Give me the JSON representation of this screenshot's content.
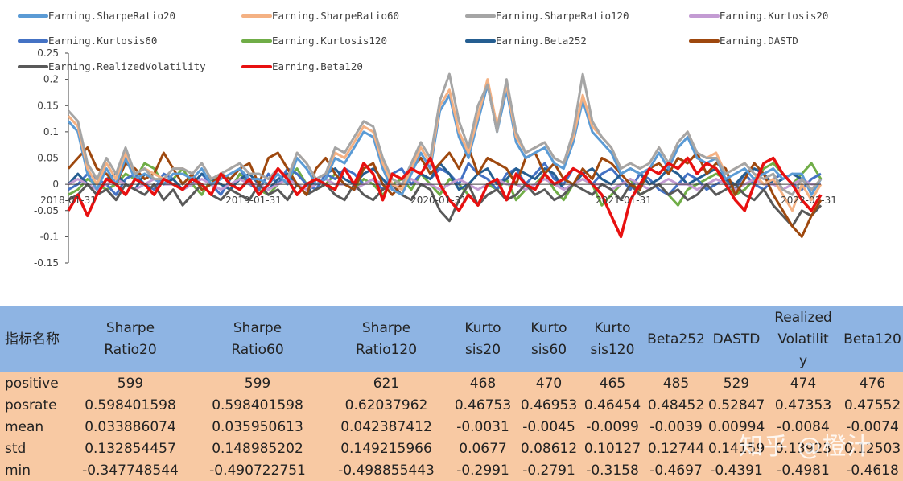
{
  "chart_data": {
    "type": "line",
    "x_tick_labels": [
      "2018-01-31",
      "2019-01-31",
      "2020-01-31",
      "2021-01-31",
      "2022-01-31"
    ],
    "yticks": [
      "0.25",
      "0.2",
      "0.15",
      "0.1",
      "0.05",
      "0",
      "-0.05",
      "-0.1",
      "-0.15"
    ],
    "ylim": [
      -0.15,
      0.25
    ],
    "grid": false,
    "legend_position": "top",
    "series": [
      {
        "name": "Earning.SharpeRatio20",
        "color": "#5b9bd5",
        "values": [
          0.12,
          0.1,
          0.02,
          -0.01,
          0.03,
          0.0,
          0.05,
          0.01,
          0.02,
          0.01,
          0.0,
          0.02,
          0.02,
          0.01,
          0.03,
          0.0,
          0.01,
          0.02,
          0.03,
          0.01,
          0.01,
          0.0,
          0.02,
          0.0,
          0.05,
          0.03,
          0.0,
          0.01,
          0.05,
          0.04,
          0.07,
          0.1,
          0.09,
          0.03,
          -0.01,
          -0.02,
          0.02,
          0.06,
          0.03,
          0.14,
          0.17,
          0.09,
          0.05,
          0.12,
          0.19,
          0.1,
          0.18,
          0.08,
          0.05,
          0.06,
          0.07,
          0.04,
          0.03,
          0.08,
          0.16,
          0.1,
          0.08,
          0.06,
          0.02,
          0.03,
          0.02,
          0.03,
          0.06,
          0.03,
          0.07,
          0.09,
          0.05,
          0.04,
          0.05,
          0.01,
          0.02,
          0.03,
          0.01,
          0.02,
          0.03,
          0.01,
          0.02,
          0.02,
          -0.02,
          0.01
        ]
      },
      {
        "name": "Earning.SharpeRatio60",
        "color": "#f4b183",
        "values": [
          0.13,
          0.11,
          0.03,
          0.0,
          0.04,
          0.01,
          0.06,
          0.02,
          0.03,
          0.02,
          0.01,
          0.03,
          0.03,
          0.02,
          0.04,
          0.01,
          0.02,
          0.03,
          0.04,
          0.02,
          0.02,
          0.01,
          0.03,
          0.01,
          0.06,
          0.04,
          0.01,
          0.02,
          0.06,
          0.05,
          0.08,
          0.11,
          0.1,
          0.04,
          0.0,
          -0.01,
          0.03,
          0.07,
          0.04,
          0.15,
          0.18,
          0.1,
          0.06,
          0.13,
          0.2,
          0.11,
          0.19,
          0.09,
          0.06,
          0.07,
          0.08,
          0.05,
          0.04,
          0.09,
          0.17,
          0.11,
          0.09,
          0.07,
          0.03,
          0.04,
          0.03,
          0.04,
          0.07,
          0.04,
          0.08,
          0.1,
          0.06,
          0.05,
          0.06,
          0.02,
          0.03,
          0.04,
          0.02,
          0.0,
          0.01,
          -0.02,
          -0.05,
          0.0,
          -0.03,
          0.0
        ]
      },
      {
        "name": "Earning.SharpeRatio120",
        "color": "#a5a5a5",
        "values": [
          0.14,
          0.12,
          0.04,
          0.01,
          0.05,
          0.02,
          0.07,
          0.02,
          0.03,
          0.01,
          0.01,
          0.03,
          0.03,
          0.02,
          0.04,
          0.01,
          0.02,
          0.03,
          0.04,
          0.02,
          0.02,
          0.01,
          0.03,
          0.01,
          0.06,
          0.04,
          0.01,
          0.02,
          0.07,
          0.06,
          0.09,
          0.12,
          0.11,
          0.05,
          0.01,
          0.0,
          0.04,
          0.08,
          0.05,
          0.16,
          0.21,
          0.12,
          0.07,
          0.15,
          0.19,
          0.1,
          0.2,
          0.1,
          0.06,
          0.07,
          0.08,
          0.05,
          0.04,
          0.1,
          0.21,
          0.12,
          0.09,
          0.07,
          0.03,
          0.04,
          0.03,
          0.04,
          0.07,
          0.04,
          0.08,
          0.1,
          0.06,
          0.05,
          0.05,
          0.02,
          0.03,
          0.04,
          0.02,
          0.01,
          0.02,
          -0.01,
          -0.02,
          0.01,
          -0.01,
          0.01
        ]
      },
      {
        "name": "Earning.Kurtosis20",
        "color": "#c39bd3",
        "values": [
          0.0,
          0.01,
          0.0,
          -0.01,
          0.0,
          0.01,
          0.0,
          -0.01,
          0.0,
          0.01,
          0.0,
          0.0,
          -0.01,
          0.0,
          0.01,
          0.0,
          -0.01,
          0.0,
          0.01,
          0.0,
          0.0,
          -0.01,
          0.0,
          0.01,
          0.0,
          -0.01,
          0.0,
          0.01,
          0.0,
          0.0,
          -0.01,
          0.0,
          0.01,
          0.0,
          -0.01,
          0.0,
          0.01,
          0.0,
          0.0,
          -0.01,
          0.0,
          0.01,
          0.0,
          -0.01,
          0.0,
          0.01,
          0.0,
          0.0,
          -0.01,
          0.0,
          0.01,
          0.0,
          -0.01,
          0.0,
          0.01,
          0.0,
          0.0,
          -0.01,
          0.0,
          0.01,
          0.0,
          -0.01,
          0.0,
          0.01,
          0.0,
          0.0,
          -0.01,
          0.0,
          0.01,
          0.0,
          -0.01,
          0.0,
          0.01,
          0.0,
          0.0,
          -0.01,
          0.0,
          0.01,
          0.0,
          0.0
        ]
      },
      {
        "name": "Earning.Kurtosis60",
        "color": "#4472c4",
        "values": [
          -0.01,
          0.0,
          0.02,
          0.01,
          0.0,
          -0.02,
          0.01,
          0.02,
          0.0,
          -0.01,
          0.02,
          0.01,
          -0.01,
          0.0,
          0.02,
          0.0,
          -0.02,
          0.01,
          0.03,
          0.0,
          -0.01,
          0.02,
          0.0,
          0.03,
          0.02,
          0.0,
          -0.01,
          0.02,
          0.01,
          0.03,
          0.02,
          0.0,
          0.01,
          -0.01,
          0.02,
          0.03,
          0.0,
          0.02,
          0.01,
          0.03,
          0.02,
          0.0,
          0.04,
          0.02,
          0.01,
          -0.01,
          0.02,
          0.03,
          0.0,
          0.02,
          0.04,
          0.01,
          0.0,
          0.03,
          0.02,
          0.0,
          0.02,
          0.03,
          0.01,
          -0.01,
          0.02,
          0.01,
          -0.01,
          -0.02,
          0.0,
          0.02,
          0.01,
          -0.01,
          0.0,
          0.01,
          -0.01,
          0.02,
          0.0,
          -0.01,
          0.01,
          0.02,
          0.0,
          -0.01,
          0.01,
          0.02
        ]
      },
      {
        "name": "Earning.Kurtosis120",
        "color": "#70ad47",
        "values": [
          -0.02,
          -0.01,
          0.01,
          0.0,
          -0.01,
          0.0,
          0.02,
          0.01,
          0.04,
          0.03,
          0.0,
          0.01,
          0.03,
          0.0,
          -0.02,
          0.01,
          0.0,
          -0.01,
          0.02,
          0.0,
          -0.01,
          -0.02,
          0.0,
          0.01,
          0.03,
          0.0,
          -0.01,
          0.0,
          0.02,
          0.0,
          -0.01,
          0.01,
          0.0,
          -0.02,
          0.0,
          0.01,
          -0.01,
          0.02,
          0.0,
          -0.02,
          0.01,
          0.0,
          -0.02,
          -0.04,
          0.0,
          -0.01,
          0.01,
          -0.03,
          -0.01,
          0.0,
          0.02,
          -0.01,
          -0.03,
          0.0,
          0.01,
          0.0,
          -0.04,
          -0.02,
          0.0,
          0.01,
          -0.02,
          -0.01,
          0.0,
          -0.02,
          -0.04,
          -0.01,
          0.0,
          0.01,
          0.02,
          0.01,
          -0.02,
          -0.01,
          0.01,
          0.03,
          0.04,
          0.02,
          0.0,
          0.02,
          0.04,
          0.01
        ]
      },
      {
        "name": "Earning.Beta252",
        "color": "#255e91",
        "values": [
          0.0,
          0.02,
          0.0,
          -0.02,
          0.01,
          0.02,
          0.0,
          -0.01,
          0.02,
          0.01,
          0.0,
          0.01,
          -0.01,
          0.0,
          0.02,
          0.01,
          0.0,
          -0.01,
          0.01,
          0.02,
          0.0,
          -0.01,
          0.01,
          0.02,
          0.0,
          -0.02,
          0.01,
          0.02,
          0.03,
          0.01,
          0.0,
          0.02,
          0.03,
          0.01,
          -0.01,
          0.0,
          0.03,
          0.02,
          0.01,
          0.04,
          0.02,
          -0.01,
          0.0,
          0.02,
          0.03,
          0.0,
          0.01,
          0.03,
          0.02,
          0.01,
          0.03,
          0.02,
          -0.01,
          0.0,
          0.02,
          0.03,
          0.01,
          0.0,
          0.02,
          0.03,
          0.02,
          0.0,
          0.01,
          0.03,
          0.02,
          0.0,
          0.01,
          0.02,
          0.03,
          0.01,
          0.0,
          0.02,
          0.03,
          0.02,
          0.0,
          0.01,
          0.02,
          0.01,
          -0.01,
          0.0
        ]
      },
      {
        "name": "Earning.DASTD",
        "color": "#9e480e",
        "values": [
          0.03,
          0.05,
          0.07,
          0.03,
          0.02,
          0.0,
          0.04,
          0.03,
          0.01,
          0.02,
          0.06,
          0.03,
          0.0,
          0.02,
          -0.01,
          0.0,
          0.02,
          0.01,
          0.03,
          0.04,
          0.0,
          0.05,
          0.06,
          0.03,
          0.0,
          -0.02,
          0.03,
          0.05,
          0.02,
          0.0,
          -0.01,
          0.03,
          0.04,
          0.0,
          -0.02,
          0.0,
          0.03,
          0.05,
          0.02,
          0.04,
          0.06,
          0.03,
          0.07,
          0.02,
          0.05,
          0.04,
          0.03,
          0.0,
          0.05,
          0.06,
          0.02,
          0.04,
          0.01,
          0.0,
          0.03,
          0.01,
          0.05,
          0.04,
          0.02,
          0.0,
          -0.01,
          0.03,
          0.04,
          0.02,
          0.05,
          0.04,
          0.06,
          0.02,
          0.04,
          0.03,
          -0.02,
          0.01,
          0.04,
          0.02,
          -0.02,
          -0.05,
          -0.08,
          -0.1,
          -0.06,
          -0.03
        ]
      },
      {
        "name": "Earning.RealizedVolatility",
        "color": "#595959",
        "values": [
          -0.03,
          -0.02,
          0.0,
          -0.02,
          -0.01,
          -0.03,
          0.0,
          -0.01,
          -0.02,
          0.0,
          -0.03,
          -0.01,
          -0.04,
          -0.02,
          0.0,
          -0.02,
          -0.03,
          -0.01,
          -0.02,
          -0.03,
          0.0,
          -0.02,
          -0.01,
          -0.03,
          0.0,
          -0.02,
          -0.01,
          0.0,
          -0.02,
          -0.03,
          0.0,
          -0.02,
          -0.03,
          -0.01,
          0.0,
          -0.02,
          -0.03,
          0.0,
          -0.01,
          -0.05,
          -0.07,
          -0.03,
          0.0,
          -0.04,
          -0.02,
          -0.01,
          -0.03,
          -0.02,
          0.0,
          -0.02,
          -0.01,
          -0.03,
          -0.02,
          0.0,
          -0.01,
          -0.02,
          0.0,
          -0.01,
          -0.03,
          0.0,
          -0.02,
          -0.01,
          0.0,
          -0.02,
          -0.01,
          -0.03,
          -0.02,
          0.0,
          -0.02,
          -0.01,
          0.0,
          -0.02,
          -0.03,
          -0.01,
          -0.04,
          -0.06,
          -0.08,
          -0.05,
          -0.06,
          -0.04
        ]
      },
      {
        "name": "Earning.Beta120",
        "color": "#e81010",
        "values": [
          -0.05,
          -0.02,
          -0.06,
          -0.02,
          0.01,
          0.0,
          -0.02,
          0.01,
          0.0,
          -0.02,
          0.01,
          0.0,
          -0.01,
          0.01,
          0.0,
          -0.02,
          0.02,
          0.0,
          -0.01,
          0.01,
          -0.02,
          0.0,
          0.03,
          0.01,
          -0.02,
          0.0,
          0.01,
          0.0,
          -0.01,
          0.03,
          0.0,
          0.04,
          0.02,
          -0.03,
          0.02,
          0.01,
          0.03,
          0.02,
          0.05,
          0.0,
          -0.03,
          -0.05,
          -0.02,
          -0.04,
          0.0,
          0.01,
          -0.03,
          0.02,
          0.0,
          -0.01,
          0.02,
          0.0,
          0.01,
          0.03,
          0.02,
          0.0,
          -0.02,
          -0.06,
          -0.1,
          -0.03,
          0.0,
          0.03,
          0.02,
          0.04,
          0.03,
          0.05,
          0.02,
          0.04,
          0.03,
          0.0,
          -0.03,
          -0.05,
          0.0,
          0.04,
          0.05,
          0.02,
          0.0,
          -0.03,
          -0.05,
          -0.02
        ]
      }
    ]
  },
  "table": {
    "corner": "指标名称",
    "headers": [
      [
        "Sharpe",
        "Ratio20"
      ],
      [
        "Sharpe",
        "Ratio60"
      ],
      [
        "Sharpe",
        "Ratio120"
      ],
      [
        "Kurto",
        "sis20"
      ],
      [
        "Kurto",
        "sis60"
      ],
      [
        "Kurto",
        "sis120"
      ],
      [
        "Beta252"
      ],
      [
        "DASTD"
      ],
      [
        "Realized",
        "Volatilit",
        "y"
      ],
      [
        "Beta120"
      ]
    ],
    "rows": [
      {
        "label": "positive",
        "values": [
          "599",
          "599",
          "621",
          "468",
          "470",
          "465",
          "485",
          "529",
          "474",
          "476"
        ]
      },
      {
        "label": "posrate",
        "values": [
          "0.598401598",
          "0.598401598",
          "0.62037962",
          "0.46753",
          "0.46953",
          "0.46454",
          "0.48452",
          "0.52847",
          "0.47353",
          "0.47552"
        ]
      },
      {
        "label": "mean",
        "values": [
          "0.033886074",
          "0.035950613",
          "0.042387412",
          "-0.0031",
          "-0.0045",
          "-0.0099",
          "-0.0039",
          "0.00994",
          "-0.0084",
          "-0.0074"
        ]
      },
      {
        "label": "std",
        "values": [
          "0.132854457",
          "0.148985202",
          "0.149215966",
          "0.0677",
          "0.08612",
          "0.10127",
          "0.12744",
          "0.14159",
          "0.13923",
          "0.12503"
        ]
      },
      {
        "label": "min",
        "values": [
          "-0.347748544",
          "-0.490722751",
          "-0.498855443",
          "-0.2991",
          "-0.2791",
          "-0.3158",
          "-0.4697",
          "-0.4391",
          "-0.4981",
          "-0.4618"
        ]
      }
    ]
  },
  "watermark": "知乎 @橙汁"
}
